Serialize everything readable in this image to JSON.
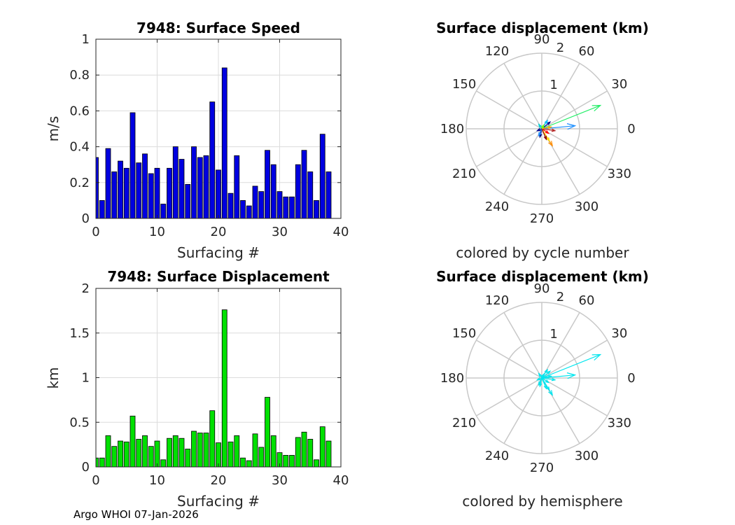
{
  "chart_data": [
    {
      "type": "bar",
      "title": "7948: Surface Speed",
      "xlabel": "Surfacing #",
      "ylabel": "m/s",
      "xlim": [
        0,
        40
      ],
      "ylim": [
        0,
        1
      ],
      "xticks": [
        "0",
        "10",
        "20",
        "30",
        "40"
      ],
      "yticks": [
        "0",
        "0.2",
        "0.4",
        "0.6",
        "0.8",
        "1"
      ],
      "grid": true,
      "bar_color": "#0000e0",
      "x": [
        0,
        1,
        2,
        3,
        4,
        5,
        6,
        7,
        8,
        9,
        10,
        11,
        12,
        13,
        14,
        15,
        16,
        17,
        18,
        19,
        20,
        21,
        22,
        23,
        24,
        25,
        26,
        27,
        28,
        29,
        30,
        31,
        32,
        33,
        34,
        35,
        36,
        37,
        38
      ],
      "values": [
        0.34,
        0.1,
        0.39,
        0.26,
        0.32,
        0.28,
        0.59,
        0.31,
        0.36,
        0.25,
        0.28,
        0.08,
        0.28,
        0.4,
        0.33,
        0.19,
        0.4,
        0.34,
        0.35,
        0.65,
        0.27,
        0.84,
        0.14,
        0.35,
        0.1,
        0.07,
        0.18,
        0.15,
        0.38,
        0.3,
        0.15,
        0.12,
        0.12,
        0.3,
        0.38,
        0.26,
        0.1,
        0.47,
        0.26
      ]
    },
    {
      "type": "compass",
      "title": "Surface displacement (km)",
      "caption": "colored by cycle number",
      "rmax": 2,
      "rings": [
        "1",
        "2"
      ],
      "angle_labels": [
        "0",
        "30",
        "60",
        "90",
        "120",
        "150",
        "180",
        "210",
        "240",
        "270",
        "300",
        "330"
      ],
      "vectors": [
        {
          "dx": 1.55,
          "dy": 0.62,
          "color": "#22ee66"
        },
        {
          "dx": 0.88,
          "dy": 0.08,
          "color": "#1e90ff"
        },
        {
          "dx": 0.22,
          "dy": 0.18,
          "color": "#00008b"
        },
        {
          "dx": 0.15,
          "dy": 0.22,
          "color": "#00bfff"
        },
        {
          "dx": -0.08,
          "dy": 0.12,
          "color": "#00ced1"
        },
        {
          "dx": 0.28,
          "dy": -0.45,
          "color": "#ff8c00"
        },
        {
          "dx": 0.2,
          "dy": -0.32,
          "color": "#ffd700"
        },
        {
          "dx": 0.35,
          "dy": -0.05,
          "color": "#b22222"
        },
        {
          "dx": 0.18,
          "dy": -0.12,
          "color": "#ff0000"
        },
        {
          "dx": 0.12,
          "dy": -0.28,
          "color": "#8b0000"
        },
        {
          "dx": -0.05,
          "dy": -0.22,
          "color": "#000080"
        },
        {
          "dx": -0.08,
          "dy": -0.18,
          "color": "#1e90ff"
        },
        {
          "dx": 0.05,
          "dy": 0.1,
          "color": "#7fff00"
        },
        {
          "dx": 0.25,
          "dy": 0.05,
          "color": "#ffa500"
        },
        {
          "dx": -0.12,
          "dy": -0.05,
          "color": "#00008b"
        }
      ]
    },
    {
      "type": "bar",
      "title": "7948: Surface Displacement",
      "xlabel": "Surfacing #",
      "ylabel": "km",
      "xlim": [
        0,
        40
      ],
      "ylim": [
        0,
        2
      ],
      "xticks": [
        "0",
        "10",
        "20",
        "30",
        "40"
      ],
      "yticks": [
        "0",
        "0.5",
        "1",
        "1.5",
        "2"
      ],
      "grid": true,
      "bar_color": "#00e000",
      "x": [
        0,
        1,
        2,
        3,
        4,
        5,
        6,
        7,
        8,
        9,
        10,
        11,
        12,
        13,
        14,
        15,
        16,
        17,
        18,
        19,
        20,
        21,
        22,
        23,
        24,
        25,
        26,
        27,
        28,
        29,
        30,
        31,
        32,
        33,
        34,
        35,
        36,
        37,
        38
      ],
      "values": [
        0.1,
        0.1,
        0.35,
        0.23,
        0.29,
        0.28,
        0.57,
        0.31,
        0.35,
        0.23,
        0.29,
        0.08,
        0.32,
        0.35,
        0.32,
        0.2,
        0.4,
        0.38,
        0.38,
        0.63,
        0.27,
        1.76,
        0.28,
        0.35,
        0.1,
        0.07,
        0.37,
        0.22,
        0.78,
        0.35,
        0.16,
        0.13,
        0.13,
        0.33,
        0.39,
        0.31,
        0.08,
        0.45,
        0.29
      ]
    },
    {
      "type": "compass",
      "title": "Surface displacement (km)",
      "caption": "colored by hemisphere",
      "rmax": 2,
      "rings": [
        "1",
        "2"
      ],
      "angle_labels": [
        "0",
        "30",
        "60",
        "90",
        "120",
        "150",
        "180",
        "210",
        "240",
        "270",
        "300",
        "330"
      ],
      "vectors": [
        {
          "dx": 1.55,
          "dy": 0.62,
          "color": "#00e5ee"
        },
        {
          "dx": 0.88,
          "dy": 0.08,
          "color": "#00e5ee"
        },
        {
          "dx": 0.22,
          "dy": 0.18,
          "color": "#00e5ee"
        },
        {
          "dx": 0.15,
          "dy": 0.22,
          "color": "#00e5ee"
        },
        {
          "dx": -0.08,
          "dy": 0.12,
          "color": "#00e5ee"
        },
        {
          "dx": 0.28,
          "dy": -0.45,
          "color": "#00e5ee"
        },
        {
          "dx": 0.2,
          "dy": -0.32,
          "color": "#00e5ee"
        },
        {
          "dx": 0.35,
          "dy": -0.05,
          "color": "#00e5ee"
        },
        {
          "dx": 0.18,
          "dy": -0.12,
          "color": "#00e5ee"
        },
        {
          "dx": 0.12,
          "dy": -0.28,
          "color": "#00e5ee"
        },
        {
          "dx": -0.05,
          "dy": -0.22,
          "color": "#00e5ee"
        },
        {
          "dx": -0.08,
          "dy": -0.18,
          "color": "#00e5ee"
        },
        {
          "dx": 0.05,
          "dy": 0.1,
          "color": "#00e5ee"
        },
        {
          "dx": 0.25,
          "dy": 0.05,
          "color": "#00e5ee"
        },
        {
          "dx": -0.12,
          "dy": -0.05,
          "color": "#00e5ee"
        }
      ]
    }
  ],
  "footer": "Argo WHOI 07-Jan-2026"
}
